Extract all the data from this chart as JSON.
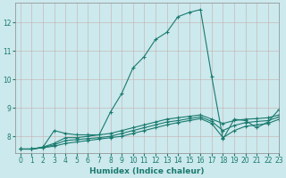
{
  "xlabel": "Humidex (Indice chaleur)",
  "background_color": "#cce9ed",
  "grid_color": "#b0c8cc",
  "line_color": "#1a7a6e",
  "xlim": [
    -0.5,
    23
  ],
  "ylim": [
    7.4,
    12.7
  ],
  "yticks": [
    8,
    9,
    10,
    11,
    12
  ],
  "xticks": [
    0,
    1,
    2,
    3,
    4,
    5,
    6,
    7,
    8,
    9,
    10,
    11,
    12,
    13,
    14,
    15,
    16,
    17,
    18,
    19,
    20,
    21,
    22,
    23
  ],
  "series": [
    [
      7.55,
      7.55,
      7.62,
      8.2,
      8.1,
      8.05,
      8.05,
      8.05,
      8.85,
      9.5,
      10.4,
      10.8,
      11.4,
      11.65,
      12.2,
      12.35,
      12.45,
      10.1,
      7.9,
      8.6,
      8.55,
      8.3,
      8.5,
      8.95
    ],
    [
      7.55,
      7.55,
      7.62,
      7.75,
      7.95,
      7.95,
      8.0,
      8.05,
      8.1,
      8.2,
      8.3,
      8.4,
      8.5,
      8.6,
      8.65,
      8.7,
      8.75,
      8.6,
      8.45,
      8.55,
      8.6,
      8.62,
      8.65,
      8.75
    ],
    [
      7.55,
      7.55,
      7.6,
      7.7,
      7.85,
      7.88,
      7.92,
      7.95,
      8.0,
      8.1,
      8.2,
      8.3,
      8.4,
      8.5,
      8.55,
      8.62,
      8.68,
      8.52,
      8.2,
      8.38,
      8.48,
      8.52,
      8.55,
      8.68
    ],
    [
      7.55,
      7.55,
      7.6,
      7.65,
      7.75,
      7.8,
      7.85,
      7.9,
      7.95,
      8.0,
      8.1,
      8.2,
      8.3,
      8.4,
      8.48,
      8.55,
      8.62,
      8.45,
      7.95,
      8.2,
      8.35,
      8.4,
      8.45,
      8.6
    ]
  ]
}
